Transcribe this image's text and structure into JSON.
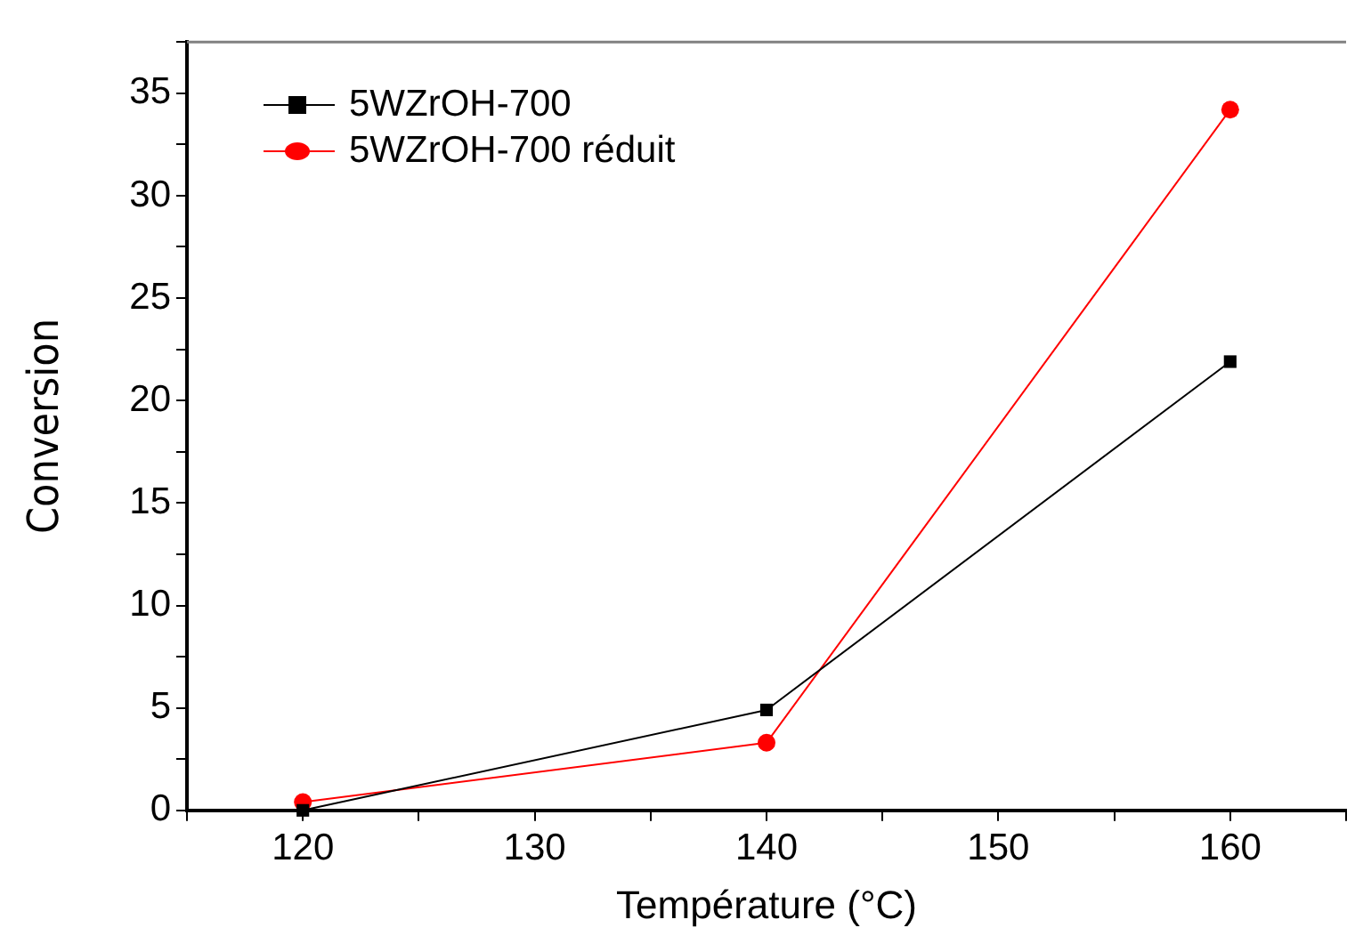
{
  "chart_data": {
    "type": "line",
    "xlabel": "Température (°C)",
    "ylabel": "Conversion",
    "x": [
      120,
      140,
      160
    ],
    "series": [
      {
        "name": "5WZrOH-700",
        "color": "#000000",
        "values": [
          0,
          4.9,
          21.9
        ],
        "marker": "square"
      },
      {
        "name": "5WZrOH-700 réduit",
        "color": "#ff0000",
        "values": [
          0.4,
          3.3,
          34.2
        ],
        "marker": "circle"
      }
    ],
    "xlim": [
      115,
      165
    ],
    "xticks": [
      {
        "value": 115,
        "label": null
      },
      120,
      {
        "value": 125,
        "label": null
      },
      130,
      {
        "value": 135,
        "label": null
      },
      140,
      {
        "value": 145,
        "label": null
      },
      150,
      {
        "value": 155,
        "label": null
      },
      160,
      {
        "value": 165,
        "label": null
      }
    ],
    "ylim": [
      0,
      37.5
    ],
    "yticks": [
      0,
      {
        "value": 2.5,
        "label": null
      },
      5,
      {
        "value": 7.5,
        "label": null
      },
      10,
      {
        "value": 12.5,
        "label": null
      },
      15,
      {
        "value": 17.5,
        "label": null
      },
      20,
      {
        "value": 22.5,
        "label": null
      },
      25,
      {
        "value": 27.5,
        "label": null
      },
      30,
      {
        "value": 32.5,
        "label": null
      },
      35,
      {
        "value": 37.5,
        "label": null
      }
    ],
    "grid": false,
    "legend": "top left",
    "line_style": "solid"
  }
}
